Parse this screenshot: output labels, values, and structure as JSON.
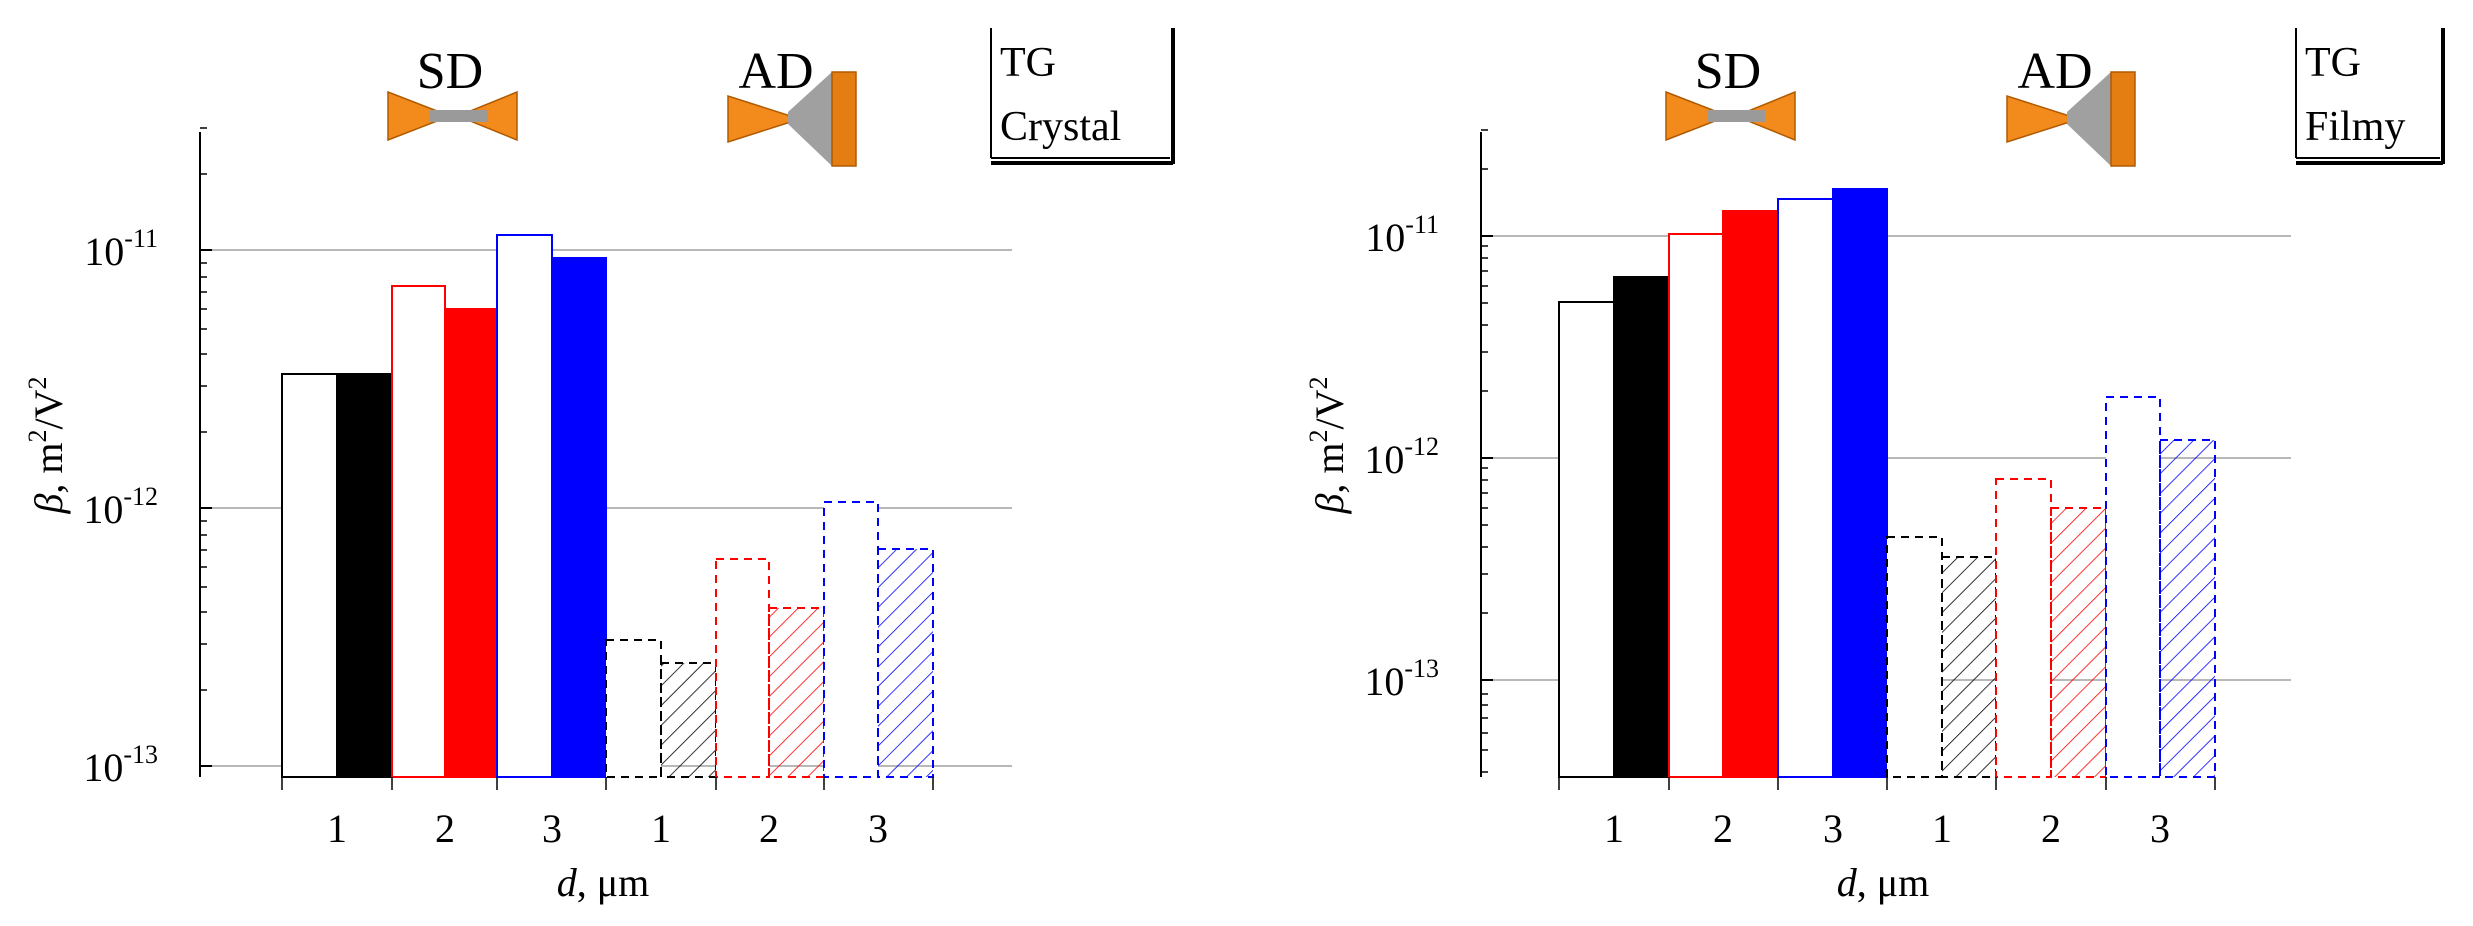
{
  "chart_data": [
    {
      "type": "bar",
      "scale": "log",
      "ylim": [
        9e-14,
        3e-11
      ],
      "yticks": [
        {
          "value": 1e-13,
          "base": "10",
          "exp": "-13"
        },
        {
          "value": 1e-12,
          "base": "10",
          "exp": "-12"
        },
        {
          "value": 1e-11,
          "base": "10",
          "exp": "-11"
        }
      ],
      "ylabel": {
        "symbol": "β",
        "unit": ", m",
        "exp1": "2",
        "slash": "/V",
        "exp2": "2"
      },
      "xlabel": {
        "symbol": "d",
        "unit": ", μm"
      },
      "tick_labels": [
        "1",
        "2",
        "3",
        "1",
        "2",
        "3"
      ],
      "group_labels": [
        "SD",
        "AD"
      ],
      "legend": {
        "line1": "TG",
        "line2": "Crystal"
      },
      "bars": [
        {
          "group": "SD",
          "d": 1,
          "kind": "open",
          "color": "#000000",
          "value": 3.3e-12
        },
        {
          "group": "SD",
          "d": 1,
          "kind": "filled",
          "color": "#000000",
          "value": 3.3e-12
        },
        {
          "group": "SD",
          "d": 2,
          "kind": "open",
          "color": "#ff0000",
          "value": 7.3e-12
        },
        {
          "group": "SD",
          "d": 2,
          "kind": "filled",
          "color": "#ff0000",
          "value": 5.9e-12
        },
        {
          "group": "SD",
          "d": 3,
          "kind": "open",
          "color": "#0000ff",
          "value": 1.16e-11
        },
        {
          "group": "SD",
          "d": 3,
          "kind": "filled",
          "color": "#0000ff",
          "value": 9.4e-12
        },
        {
          "group": "AD",
          "d": 1,
          "kind": "dashed",
          "color": "#000000",
          "value": 3.1e-13
        },
        {
          "group": "AD",
          "d": 1,
          "kind": "hatched",
          "color": "#000000",
          "value": 2.5e-13
        },
        {
          "group": "AD",
          "d": 2,
          "kind": "dashed",
          "color": "#ff0000",
          "value": 6.3e-13
        },
        {
          "group": "AD",
          "d": 2,
          "kind": "hatched",
          "color": "#ff0000",
          "value": 4.1e-13
        },
        {
          "group": "AD",
          "d": 3,
          "kind": "dashed",
          "color": "#0000ff",
          "value": 1.06e-12
        },
        {
          "group": "AD",
          "d": 3,
          "kind": "hatched",
          "color": "#0000ff",
          "value": 6.9e-13
        }
      ]
    },
    {
      "type": "bar",
      "scale": "log",
      "ylim": [
        3.5e-14,
        3e-11
      ],
      "yticks": [
        {
          "value": 1e-13,
          "base": "10",
          "exp": "-13"
        },
        {
          "value": 1e-12,
          "base": "10",
          "exp": "-12"
        },
        {
          "value": 1e-11,
          "base": "10",
          "exp": "-11"
        }
      ],
      "ylabel": {
        "symbol": "β",
        "unit": ", m",
        "exp1": "2",
        "slash": "/V",
        "exp2": "2"
      },
      "xlabel": {
        "symbol": "d",
        "unit": ", μm"
      },
      "tick_labels": [
        "1",
        "2",
        "3",
        "1",
        "2",
        "3"
      ],
      "group_labels": [
        "SD",
        "AD"
      ],
      "legend": {
        "line1": "TG",
        "line2": "Filmy"
      },
      "bars": [
        {
          "group": "SD",
          "d": 1,
          "kind": "open",
          "color": "#000000",
          "value": 5e-12
        },
        {
          "group": "SD",
          "d": 1,
          "kind": "filled",
          "color": "#000000",
          "value": 6.5e-12
        },
        {
          "group": "SD",
          "d": 2,
          "kind": "open",
          "color": "#ff0000",
          "value": 1.02e-11
        },
        {
          "group": "SD",
          "d": 2,
          "kind": "filled",
          "color": "#ff0000",
          "value": 1.3e-11
        },
        {
          "group": "SD",
          "d": 3,
          "kind": "open",
          "color": "#0000ff",
          "value": 1.5e-11
        },
        {
          "group": "SD",
          "d": 3,
          "kind": "filled",
          "color": "#0000ff",
          "value": 1.65e-11
        },
        {
          "group": "AD",
          "d": 1,
          "kind": "dashed",
          "color": "#000000",
          "value": 4.4e-13
        },
        {
          "group": "AD",
          "d": 1,
          "kind": "hatched",
          "color": "#000000",
          "value": 3.6e-13
        },
        {
          "group": "AD",
          "d": 2,
          "kind": "dashed",
          "color": "#ff0000",
          "value": 8e-13
        },
        {
          "group": "AD",
          "d": 2,
          "kind": "hatched",
          "color": "#ff0000",
          "value": 5.9e-13
        },
        {
          "group": "AD",
          "d": 3,
          "kind": "dashed",
          "color": "#0000ff",
          "value": 1.88e-12
        },
        {
          "group": "AD",
          "d": 3,
          "kind": "hatched",
          "color": "#0000ff",
          "value": 1.2e-12
        }
      ]
    }
  ]
}
